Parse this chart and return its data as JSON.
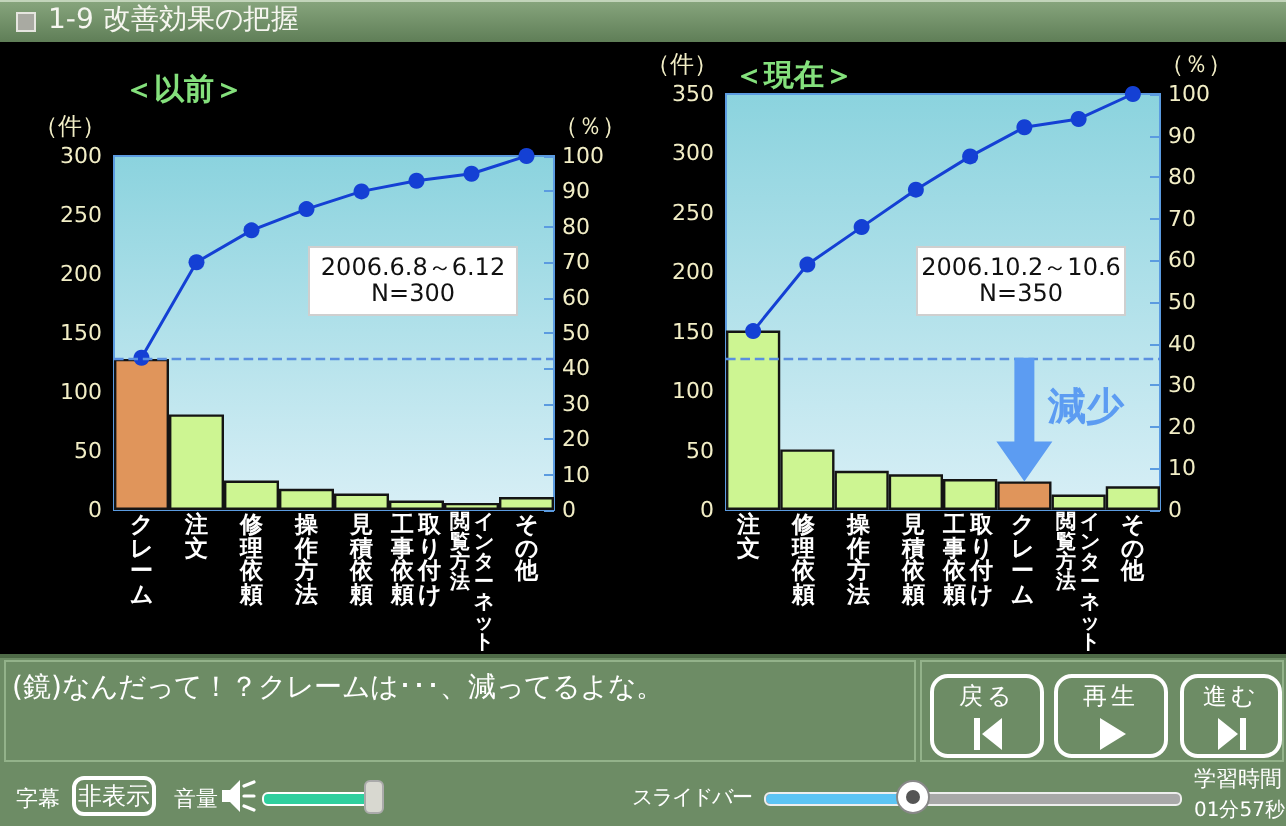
{
  "chart_data": [
    {
      "type": "other",
      "title": "1-9 改善効果の把握"
    },
    {
      "type": "bar",
      "title": "＜以前＞",
      "ylabel": "（件）",
      "y2label": "（％）",
      "categories": [
        "クレーム",
        "注文",
        "修理依頼",
        "操作方法",
        "見積依頼",
        "取り付け工事依頼",
        "インターネット閲覧方法",
        "その他"
      ],
      "series": [
        {
          "type": "bar",
          "colors": [
            "#e0955b",
            "#cdf592",
            "#cdf592",
            "#cdf592",
            "#cdf592",
            "#cdf592",
            "#cdf592",
            "#cdf592"
          ],
          "values": [
            128,
            81,
            25,
            18,
            14,
            8,
            6,
            11
          ]
        },
        {
          "type": "line",
          "axis": "y2",
          "color": "#1440d4",
          "values": [
            43,
            70,
            79,
            85,
            90,
            93,
            95,
            100
          ]
        }
      ],
      "ylim": [
        0,
        300
      ],
      "yticks": [
        0,
        50,
        100,
        150,
        200,
        250,
        300
      ],
      "y2lim": [
        0,
        100
      ],
      "y2ticks": [
        0,
        10,
        20,
        30,
        40,
        50,
        60,
        70,
        80,
        90,
        100
      ],
      "marker": "circle",
      "ref_lines": [
        {
          "axis": "y",
          "value": 128,
          "color": "#5a8fe0",
          "line_style": "dashed"
        }
      ],
      "annotations": [
        "2006.6.8～6.12",
        "N=300"
      ]
    },
    {
      "type": "bar",
      "title": "＜現在＞",
      "ylabel": "（件）",
      "y2label": "（％）",
      "categories": [
        "注文",
        "修理依頼",
        "操作方法",
        "見積依頼",
        "取り付け工事依頼",
        "クレーム",
        "インターネット閲覧方法",
        "その他"
      ],
      "series": [
        {
          "type": "bar",
          "colors": [
            "#cdf592",
            "#cdf592",
            "#cdf592",
            "#cdf592",
            "#cdf592",
            "#e0955b",
            "#cdf592",
            "#cdf592"
          ],
          "values": [
            151,
            51,
            33,
            30,
            26,
            24,
            13,
            20
          ]
        },
        {
          "type": "line",
          "axis": "y2",
          "color": "#1440d4",
          "values": [
            43,
            59,
            68,
            77,
            85,
            92,
            94,
            100
          ]
        }
      ],
      "ylim": [
        0,
        350
      ],
      "yticks": [
        0,
        50,
        100,
        150,
        200,
        250,
        300,
        350
      ],
      "y2lim": [
        0,
        100
      ],
      "y2ticks": [
        0,
        10,
        20,
        30,
        40,
        50,
        60,
        70,
        80,
        90,
        100
      ],
      "marker": "circle",
      "ref_lines": [
        {
          "axis": "y",
          "value": 128,
          "color": "#5a8fe0",
          "line_style": "dashed"
        }
      ],
      "annotations": [
        "2006.10.2～10.6",
        "N=350",
        {
          "text": "減少",
          "x": "クレーム",
          "y": 24
        }
      ]
    },
    {
      "type": "other",
      "annotations": [
        "(鏡)なんだって！？クレームは･･･、減ってるよな。",
        "戻る",
        "再生",
        "進む",
        "字幕",
        "非表示",
        "音量",
        "スライドバー",
        "学習時間",
        "01分57秒"
      ]
    }
  ]
}
